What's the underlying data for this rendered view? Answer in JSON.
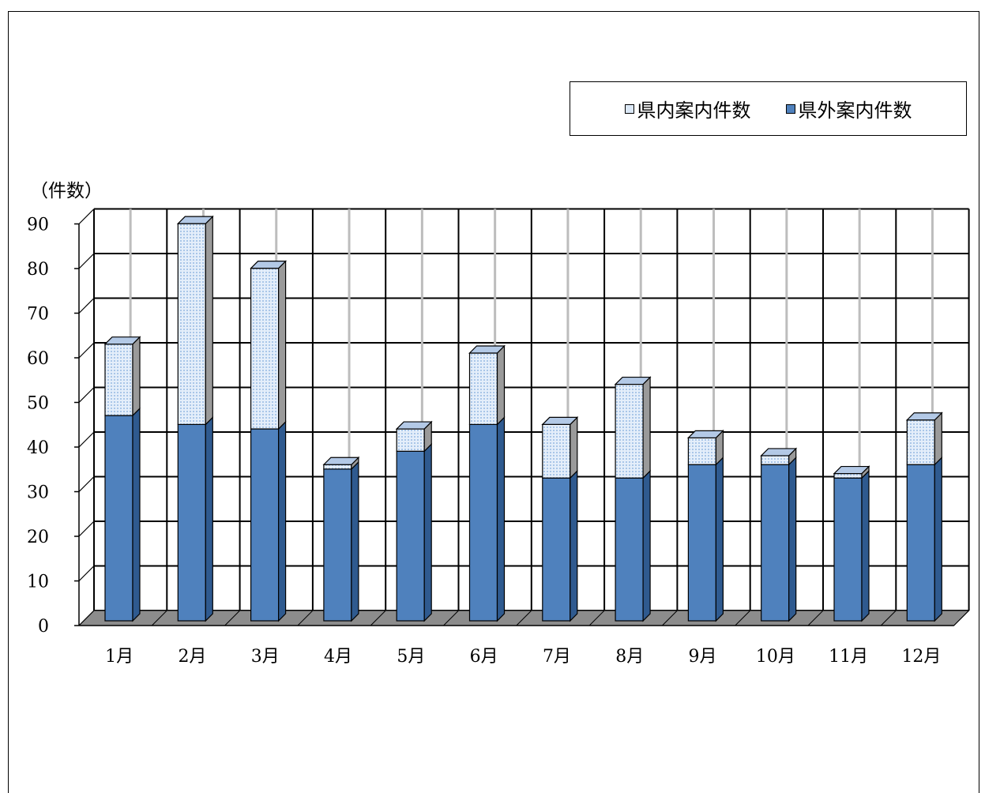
{
  "chart_data": {
    "type": "bar",
    "stacked": true,
    "three_d": true,
    "ylabel": "（件数）",
    "ylim": [
      0,
      90
    ],
    "yticks": [
      0,
      10,
      20,
      30,
      40,
      50,
      60,
      70,
      80,
      90
    ],
    "grid": true,
    "legend_position": "top-right",
    "categories": [
      "1月",
      "2月",
      "3月",
      "4月",
      "5月",
      "6月",
      "7月",
      "8月",
      "9月",
      "10月",
      "11月",
      "12月"
    ],
    "series": [
      {
        "name": "県外案内件数",
        "color": "#4f81bd",
        "values": [
          46,
          44,
          43,
          34,
          38,
          44,
          32,
          32,
          35,
          35,
          32,
          35
        ]
      },
      {
        "name": "県内案内件数",
        "color": "#dbe8f7",
        "values": [
          16,
          45,
          36,
          1,
          5,
          16,
          12,
          21,
          6,
          2,
          1,
          10
        ]
      }
    ]
  }
}
